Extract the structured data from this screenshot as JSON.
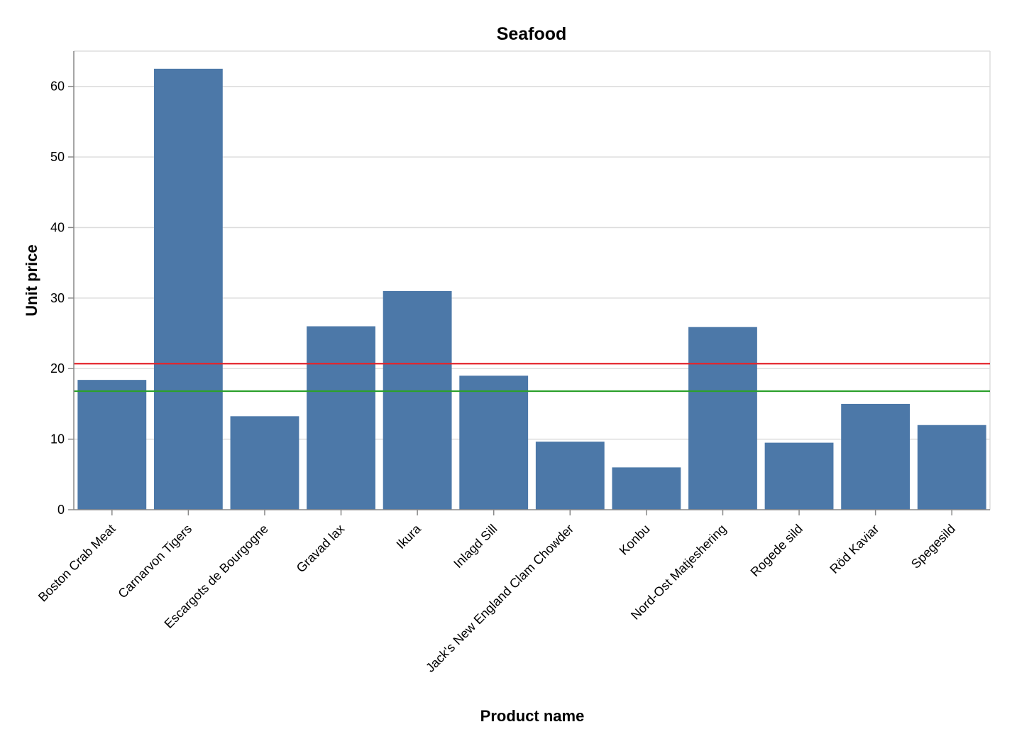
{
  "chart_data": {
    "type": "bar",
    "title": "Seafood",
    "xlabel": "Product name",
    "ylabel": "Unit price",
    "categories": [
      "Boston Crab Meat",
      "Carnarvon Tigers",
      "Escargots de Bourgogne",
      "Gravad lax",
      "Ikura",
      "Inlagd Sill",
      "Jack's New England Clam Chowder",
      "Konbu",
      "Nord-Ost Matjeshering",
      "Rogede sild",
      "Röd Kaviar",
      "Spegesild"
    ],
    "values": [
      18.4,
      62.5,
      13.25,
      26,
      31,
      19,
      9.65,
      6,
      25.89,
      9.5,
      15,
      12
    ],
    "ylim": [
      0,
      65
    ],
    "yticks": [
      0,
      10,
      20,
      30,
      40,
      50,
      60
    ],
    "grid": true,
    "bar_color": "#4c78a8",
    "reference_lines": [
      {
        "value": 20.7,
        "color": "#e4252b"
      },
      {
        "value": 16.8,
        "color": "#2ca02c"
      }
    ]
  }
}
